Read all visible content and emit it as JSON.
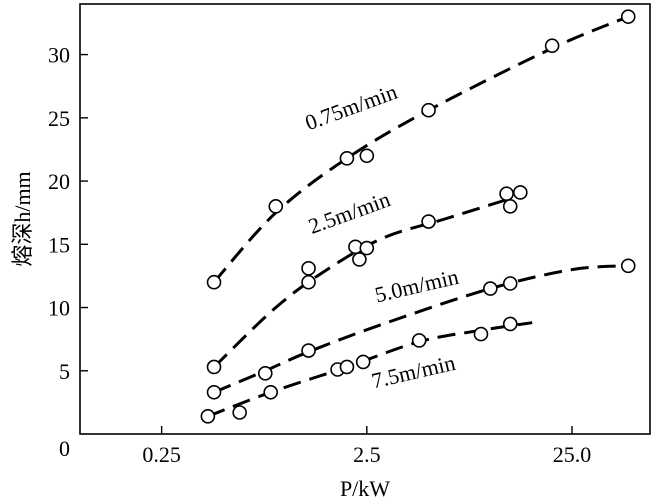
{
  "chart_data": {
    "type": "scatter",
    "x_scale": "log",
    "xlim": [
      0.1,
      60
    ],
    "ylim": [
      0,
      34
    ],
    "xlabel": "P/kW",
    "ylabel": "熔深h/mm",
    "x_ticks": [
      {
        "value": 0.25,
        "label": "0.25"
      },
      {
        "value": 2.5,
        "label": "2.5"
      },
      {
        "value": 25.0,
        "label": "25.0"
      }
    ],
    "y_ticks": [
      {
        "value": 0,
        "label": "0"
      },
      {
        "value": 5,
        "label": "5"
      },
      {
        "value": 10,
        "label": "10"
      },
      {
        "value": 15,
        "label": "15"
      },
      {
        "value": 20,
        "label": "20"
      },
      {
        "value": 25,
        "label": "25"
      },
      {
        "value": 30,
        "label": "30"
      }
    ],
    "grid": false,
    "series": [
      {
        "name": "0.75m/min",
        "points": [
          {
            "x": 0.45,
            "y": 12.0
          },
          {
            "x": 0.9,
            "y": 18.0
          },
          {
            "x": 2.0,
            "y": 21.8
          },
          {
            "x": 2.5,
            "y": 22.0
          },
          {
            "x": 5.0,
            "y": 25.6
          },
          {
            "x": 20.0,
            "y": 30.7
          },
          {
            "x": 47.0,
            "y": 33.0
          }
        ],
        "curve": [
          {
            "x": 0.45,
            "y": 12.0
          },
          {
            "x": 0.9,
            "y": 17.5
          },
          {
            "x": 2.0,
            "y": 21.8
          },
          {
            "x": 5.0,
            "y": 25.6
          },
          {
            "x": 20.0,
            "y": 30.5
          },
          {
            "x": 47.0,
            "y": 33.0
          }
        ],
        "label_anchor": {
          "x": 1.3,
          "y": 24.0
        },
        "label_angle": -20
      },
      {
        "name": "2.5m/min",
        "points": [
          {
            "x": 0.45,
            "y": 5.3
          },
          {
            "x": 1.3,
            "y": 13.1
          },
          {
            "x": 1.3,
            "y": 12.0
          },
          {
            "x": 2.2,
            "y": 14.8
          },
          {
            "x": 2.5,
            "y": 14.7
          },
          {
            "x": 2.3,
            "y": 13.8
          },
          {
            "x": 5.0,
            "y": 16.8
          },
          {
            "x": 12.0,
            "y": 19.0
          },
          {
            "x": 14.0,
            "y": 19.1
          },
          {
            "x": 12.5,
            "y": 18.0
          }
        ],
        "curve": [
          {
            "x": 0.45,
            "y": 5.3
          },
          {
            "x": 0.9,
            "y": 10.0
          },
          {
            "x": 1.6,
            "y": 13.0
          },
          {
            "x": 3.0,
            "y": 15.5
          },
          {
            "x": 6.0,
            "y": 17.0
          },
          {
            "x": 13.0,
            "y": 18.7
          }
        ],
        "label_anchor": {
          "x": 1.35,
          "y": 15.8
        },
        "label_angle": -20
      },
      {
        "name": "5.0m/min",
        "points": [
          {
            "x": 0.45,
            "y": 3.3
          },
          {
            "x": 0.8,
            "y": 4.8
          },
          {
            "x": 1.3,
            "y": 6.6
          },
          {
            "x": 10.0,
            "y": 11.5
          },
          {
            "x": 12.5,
            "y": 11.9
          },
          {
            "x": 47.0,
            "y": 13.3
          }
        ],
        "curve": [
          {
            "x": 0.45,
            "y": 3.3
          },
          {
            "x": 0.8,
            "y": 5.0
          },
          {
            "x": 1.3,
            "y": 6.5
          },
          {
            "x": 3.0,
            "y": 8.7
          },
          {
            "x": 10.0,
            "y": 11.5
          },
          {
            "x": 25.0,
            "y": 13.0
          },
          {
            "x": 47.0,
            "y": 13.3
          }
        ],
        "label_anchor": {
          "x": 2.8,
          "y": 10.4
        },
        "label_angle": -13
      },
      {
        "name": "7.5m/min",
        "points": [
          {
            "x": 0.42,
            "y": 1.4
          },
          {
            "x": 0.6,
            "y": 1.7
          },
          {
            "x": 0.85,
            "y": 3.3
          },
          {
            "x": 1.8,
            "y": 5.1
          },
          {
            "x": 2.0,
            "y": 5.3
          },
          {
            "x": 2.4,
            "y": 5.7
          },
          {
            "x": 4.5,
            "y": 7.4
          },
          {
            "x": 9.0,
            "y": 7.9
          },
          {
            "x": 12.5,
            "y": 8.7
          }
        ],
        "curve": [
          {
            "x": 0.42,
            "y": 1.4
          },
          {
            "x": 0.85,
            "y": 3.3
          },
          {
            "x": 2.0,
            "y": 5.3
          },
          {
            "x": 4.5,
            "y": 7.3
          },
          {
            "x": 9.0,
            "y": 8.2
          },
          {
            "x": 16.0,
            "y": 8.8
          }
        ],
        "label_anchor": {
          "x": 2.7,
          "y": 3.6
        },
        "label_angle": -13
      }
    ]
  }
}
